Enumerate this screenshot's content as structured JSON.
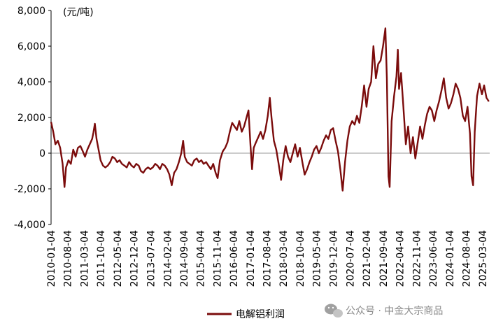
{
  "chart_data": {
    "type": "line",
    "title": "",
    "unit_label": "(元/吨)",
    "ylim": [
      -4000,
      8000
    ],
    "y_ticks": [
      "8,000",
      "6,000",
      "4,000",
      "2,000",
      "0",
      "-2,000",
      "-4,000"
    ],
    "y_tick_values": [
      8000,
      6000,
      4000,
      2000,
      0,
      -2000,
      -4000
    ],
    "x_range": [
      "2010-01-04",
      "2025-05-31"
    ],
    "x_ticks": [
      "2010-01-04",
      "2010-08-04",
      "2011-03-04",
      "2011-10-04",
      "2012-05-04",
      "2012-12-04",
      "2013-07-04",
      "2014-02-04",
      "2014-09-04",
      "2015-04-04",
      "2015-11-04",
      "2016-06-04",
      "2017-01-04",
      "2017-08-04",
      "2018-03-04",
      "2018-10-04",
      "2019-05-04",
      "2019-12-04",
      "2020-07-04",
      "2021-02-04",
      "2021-09-04",
      "2022-04-04",
      "2022-11-04",
      "2023-06-04",
      "2024-01-04",
      "2024-08-04",
      "2025-03-04"
    ],
    "grid": false,
    "legend_position": "bottom-center",
    "series": [
      {
        "name": "电解铝利润",
        "color": "#7B0C0C",
        "points": [
          [
            "2010-01-04",
            1750
          ],
          [
            "2010-02-01",
            1200
          ],
          [
            "2010-03-01",
            500
          ],
          [
            "2010-04-01",
            700
          ],
          [
            "2010-05-01",
            300
          ],
          [
            "2010-06-01",
            -600
          ],
          [
            "2010-06-25",
            -1900
          ],
          [
            "2010-07-15",
            -800
          ],
          [
            "2010-08-15",
            -400
          ],
          [
            "2010-09-15",
            -600
          ],
          [
            "2010-10-15",
            200
          ],
          [
            "2010-11-15",
            -200
          ],
          [
            "2010-12-15",
            300
          ],
          [
            "2011-01-15",
            400
          ],
          [
            "2011-02-15",
            100
          ],
          [
            "2011-03-15",
            -200
          ],
          [
            "2011-04-15",
            200
          ],
          [
            "2011-05-15",
            500
          ],
          [
            "2011-06-15",
            800
          ],
          [
            "2011-07-01",
            1150
          ],
          [
            "2011-07-20",
            1650
          ],
          [
            "2011-08-10",
            800
          ],
          [
            "2011-09-01",
            300
          ],
          [
            "2011-10-01",
            -400
          ],
          [
            "2011-11-01",
            -700
          ],
          [
            "2011-12-01",
            -800
          ],
          [
            "2012-01-01",
            -700
          ],
          [
            "2012-02-01",
            -500
          ],
          [
            "2012-03-01",
            -200
          ],
          [
            "2012-04-01",
            -300
          ],
          [
            "2012-05-01",
            -500
          ],
          [
            "2012-06-01",
            -400
          ],
          [
            "2012-07-01",
            -600
          ],
          [
            "2012-08-01",
            -700
          ],
          [
            "2012-09-01",
            -800
          ],
          [
            "2012-10-01",
            -500
          ],
          [
            "2012-11-01",
            -700
          ],
          [
            "2012-12-01",
            -800
          ],
          [
            "2013-01-01",
            -600
          ],
          [
            "2013-02-01",
            -700
          ],
          [
            "2013-03-01",
            -1000
          ],
          [
            "2013-04-01",
            -1100
          ],
          [
            "2013-05-01",
            -900
          ],
          [
            "2013-06-01",
            -800
          ],
          [
            "2013-07-01",
            -900
          ],
          [
            "2013-08-01",
            -800
          ],
          [
            "2013-09-01",
            -600
          ],
          [
            "2013-10-01",
            -700
          ],
          [
            "2013-11-01",
            -900
          ],
          [
            "2013-12-01",
            -600
          ],
          [
            "2014-01-01",
            -700
          ],
          [
            "2014-02-01",
            -900
          ],
          [
            "2014-03-01",
            -1200
          ],
          [
            "2014-04-01",
            -1800
          ],
          [
            "2014-05-01",
            -1100
          ],
          [
            "2014-06-01",
            -900
          ],
          [
            "2014-07-01",
            -500
          ],
          [
            "2014-08-01",
            0
          ],
          [
            "2014-08-25",
            700
          ],
          [
            "2014-09-15",
            -200
          ],
          [
            "2014-10-15",
            -500
          ],
          [
            "2014-11-15",
            -600
          ],
          [
            "2014-12-15",
            -700
          ],
          [
            "2015-01-15",
            -400
          ],
          [
            "2015-02-15",
            -300
          ],
          [
            "2015-03-15",
            -500
          ],
          [
            "2015-04-15",
            -400
          ],
          [
            "2015-05-15",
            -600
          ],
          [
            "2015-06-15",
            -500
          ],
          [
            "2015-07-15",
            -700
          ],
          [
            "2015-08-15",
            -900
          ],
          [
            "2015-09-15",
            -600
          ],
          [
            "2015-10-15",
            -1100
          ],
          [
            "2015-11-10",
            -1400
          ],
          [
            "2015-12-10",
            -400
          ],
          [
            "2016-01-15",
            100
          ],
          [
            "2016-02-15",
            300
          ],
          [
            "2016-03-15",
            600
          ],
          [
            "2016-04-15",
            1200
          ],
          [
            "2016-05-15",
            1700
          ],
          [
            "2016-06-15",
            1500
          ],
          [
            "2016-07-15",
            1300
          ],
          [
            "2016-08-15",
            1800
          ],
          [
            "2016-09-15",
            1200
          ],
          [
            "2016-10-15",
            1500
          ],
          [
            "2016-11-15",
            2000
          ],
          [
            "2016-12-10",
            2400
          ],
          [
            "2017-01-05",
            400
          ],
          [
            "2017-01-25",
            -900
          ],
          [
            "2017-02-15",
            300
          ],
          [
            "2017-03-15",
            600
          ],
          [
            "2017-04-15",
            900
          ],
          [
            "2017-05-15",
            1200
          ],
          [
            "2017-06-15",
            800
          ],
          [
            "2017-07-15",
            1300
          ],
          [
            "2017-08-15",
            2100
          ],
          [
            "2017-09-10",
            3100
          ],
          [
            "2017-10-01",
            2000
          ],
          [
            "2017-11-01",
            700
          ],
          [
            "2017-12-01",
            200
          ],
          [
            "2018-01-01",
            -600
          ],
          [
            "2018-02-01",
            -1500
          ],
          [
            "2018-03-01",
            -400
          ],
          [
            "2018-04-01",
            400
          ],
          [
            "2018-05-01",
            -200
          ],
          [
            "2018-06-01",
            -500
          ],
          [
            "2018-07-01",
            0
          ],
          [
            "2018-08-01",
            500
          ],
          [
            "2018-09-01",
            -200
          ],
          [
            "2018-10-01",
            300
          ],
          [
            "2018-11-01",
            -500
          ],
          [
            "2018-12-01",
            -1200
          ],
          [
            "2019-01-01",
            -900
          ],
          [
            "2019-02-01",
            -500
          ],
          [
            "2019-03-01",
            -200
          ],
          [
            "2019-04-01",
            200
          ],
          [
            "2019-05-01",
            400
          ],
          [
            "2019-06-01",
            0
          ],
          [
            "2019-07-01",
            300
          ],
          [
            "2019-08-01",
            700
          ],
          [
            "2019-09-01",
            1000
          ],
          [
            "2019-10-01",
            800
          ],
          [
            "2019-11-01",
            1300
          ],
          [
            "2019-12-01",
            1400
          ],
          [
            "2020-01-01",
            700
          ],
          [
            "2020-02-01",
            100
          ],
          [
            "2020-03-01",
            -900
          ],
          [
            "2020-04-01",
            -2100
          ],
          [
            "2020-05-01",
            -500
          ],
          [
            "2020-06-01",
            700
          ],
          [
            "2020-07-01",
            1500
          ],
          [
            "2020-08-01",
            1800
          ],
          [
            "2020-09-01",
            1600
          ],
          [
            "2020-10-01",
            2100
          ],
          [
            "2020-11-01",
            1700
          ],
          [
            "2020-12-01",
            2600
          ],
          [
            "2021-01-01",
            3800
          ],
          [
            "2021-02-01",
            2600
          ],
          [
            "2021-03-01",
            3600
          ],
          [
            "2021-04-01",
            4000
          ],
          [
            "2021-05-01",
            6000
          ],
          [
            "2021-06-01",
            4200
          ],
          [
            "2021-07-01",
            5000
          ],
          [
            "2021-08-01",
            5200
          ],
          [
            "2021-09-01",
            6000
          ],
          [
            "2021-10-01",
            7000
          ],
          [
            "2021-10-20",
            4200
          ],
          [
            "2021-11-10",
            -1300
          ],
          [
            "2021-11-25",
            -1900
          ],
          [
            "2021-12-20",
            1800
          ],
          [
            "2022-01-20",
            3200
          ],
          [
            "2022-02-20",
            4300
          ],
          [
            "2022-03-10",
            5800
          ],
          [
            "2022-03-25",
            3600
          ],
          [
            "2022-04-20",
            4500
          ],
          [
            "2022-05-20",
            2600
          ],
          [
            "2022-06-20",
            500
          ],
          [
            "2022-07-20",
            1500
          ],
          [
            "2022-08-20",
            0
          ],
          [
            "2022-09-20",
            900
          ],
          [
            "2022-10-20",
            -300
          ],
          [
            "2022-11-20",
            600
          ],
          [
            "2022-12-20",
            1500
          ],
          [
            "2023-01-20",
            800
          ],
          [
            "2023-02-20",
            1600
          ],
          [
            "2023-03-20",
            2200
          ],
          [
            "2023-04-20",
            2600
          ],
          [
            "2023-05-20",
            2400
          ],
          [
            "2023-06-20",
            1800
          ],
          [
            "2023-07-20",
            2400
          ],
          [
            "2023-08-20",
            2900
          ],
          [
            "2023-09-20",
            3500
          ],
          [
            "2023-10-20",
            4200
          ],
          [
            "2023-11-20",
            3100
          ],
          [
            "2023-12-20",
            2500
          ],
          [
            "2024-01-20",
            2800
          ],
          [
            "2024-02-20",
            3300
          ],
          [
            "2024-03-20",
            3900
          ],
          [
            "2024-04-20",
            3600
          ],
          [
            "2024-05-20",
            3100
          ],
          [
            "2024-06-20",
            2100
          ],
          [
            "2024-07-20",
            1800
          ],
          [
            "2024-08-20",
            2600
          ],
          [
            "2024-09-20",
            1100
          ],
          [
            "2024-10-10",
            -1300
          ],
          [
            "2024-10-30",
            -1800
          ],
          [
            "2024-11-20",
            1200
          ],
          [
            "2024-12-20",
            3200
          ],
          [
            "2025-01-20",
            3900
          ],
          [
            "2025-02-20",
            3300
          ],
          [
            "2025-03-20",
            3800
          ],
          [
            "2025-04-20",
            3100
          ],
          [
            "2025-05-20",
            2900
          ]
        ]
      }
    ]
  },
  "watermark": {
    "icon": "wechat-icon",
    "text": "公众号 · 中金大宗商品"
  }
}
